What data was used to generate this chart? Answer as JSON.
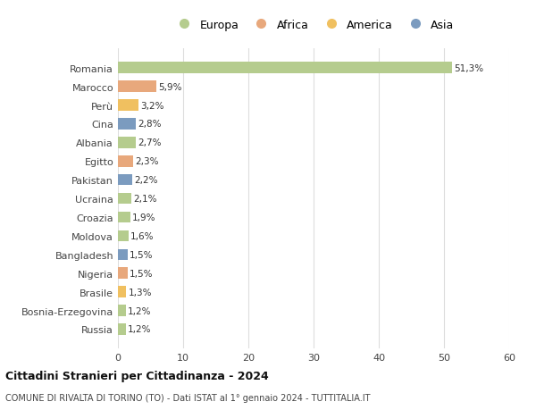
{
  "countries": [
    "Romania",
    "Marocco",
    "Perù",
    "Cina",
    "Albania",
    "Egitto",
    "Pakistan",
    "Ucraina",
    "Croazia",
    "Moldova",
    "Bangladesh",
    "Nigeria",
    "Brasile",
    "Bosnia-Erzegovina",
    "Russia"
  ],
  "values": [
    51.3,
    5.9,
    3.2,
    2.8,
    2.7,
    2.3,
    2.2,
    2.1,
    1.9,
    1.6,
    1.5,
    1.5,
    1.3,
    1.2,
    1.2
  ],
  "labels": [
    "51,3%",
    "5,9%",
    "3,2%",
    "2,8%",
    "2,7%",
    "2,3%",
    "2,2%",
    "2,1%",
    "1,9%",
    "1,6%",
    "1,5%",
    "1,5%",
    "1,3%",
    "1,2%",
    "1,2%"
  ],
  "colors": [
    "#b5cc8e",
    "#e8a87c",
    "#f0c060",
    "#7b9bbf",
    "#b5cc8e",
    "#e8a87c",
    "#7b9bbf",
    "#b5cc8e",
    "#b5cc8e",
    "#b5cc8e",
    "#7b9bbf",
    "#e8a87c",
    "#f0c060",
    "#b5cc8e",
    "#b5cc8e"
  ],
  "legend": [
    {
      "label": "Europa",
      "color": "#b5cc8e"
    },
    {
      "label": "Africa",
      "color": "#e8a87c"
    },
    {
      "label": "America",
      "color": "#f0c060"
    },
    {
      "label": "Asia",
      "color": "#7b9bbf"
    }
  ],
  "xlim": [
    0,
    60
  ],
  "xticks": [
    0,
    10,
    20,
    30,
    40,
    50,
    60
  ],
  "title": "Cittadini Stranieri per Cittadinanza - 2024",
  "subtitle": "COMUNE DI RIVALTA DI TORINO (TO) - Dati ISTAT al 1° gennaio 2024 - TUTTITALIA.IT",
  "background_color": "#ffffff",
  "grid_color": "#dddddd",
  "bar_height": 0.6
}
